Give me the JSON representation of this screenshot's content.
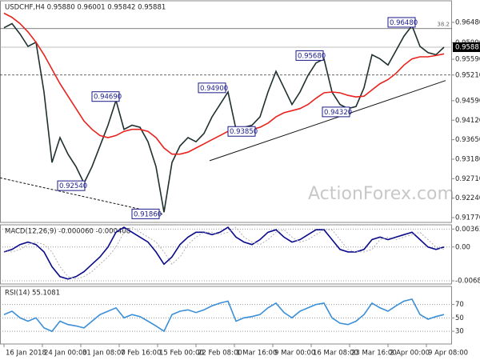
{
  "watermark": "ActionForex.com",
  "chart_data": [
    {
      "type": "line",
      "title": "USDCHF,H4  0.95880 0.96001 0.95842 0.95881",
      "x": [
        0,
        1,
        2,
        3,
        4,
        5,
        6,
        7,
        8,
        9,
        10,
        11,
        12,
        13,
        14,
        15,
        16,
        17,
        18,
        19,
        20,
        21,
        22,
        23,
        24,
        25,
        26,
        27,
        28,
        29,
        30,
        31,
        32,
        33,
        34,
        35,
        36,
        37,
        38,
        39,
        40,
        41,
        42,
        43,
        44,
        45,
        46,
        47,
        48,
        49,
        50,
        51,
        52,
        53,
        54,
        55
      ],
      "xlim": [
        -0.5,
        56
      ],
      "ylim": [
        0.91655,
        0.97
      ],
      "yticks": [
        {
          "value": 0.9648,
          "label": "0.96480"
        },
        {
          "value": 0.9599,
          "label": "0.95990"
        },
        {
          "value": 0.9559,
          "label": "0.95590"
        },
        {
          "value": 0.9521,
          "label": "0.95210"
        },
        {
          "value": 0.9459,
          "label": "0.94590"
        },
        {
          "value": 0.9412,
          "label": "0.94120"
        },
        {
          "value": 0.9365,
          "label": "0.93650"
        },
        {
          "value": 0.9318,
          "label": "0.93180"
        },
        {
          "value": 0.9271,
          "label": "0.92710"
        },
        {
          "value": 0.9224,
          "label": "0.92240"
        },
        {
          "value": 0.9177,
          "label": "0.91770"
        }
      ],
      "current": {
        "value": 0.95881,
        "label": "0.95881"
      },
      "series": [
        {
          "name": "USDCHF",
          "color": "#1f3030",
          "values": [
            0.9635,
            0.9645,
            0.962,
            0.959,
            0.96,
            0.948,
            0.931,
            0.937,
            0.933,
            0.93,
            0.926,
            0.93,
            0.935,
            0.94,
            0.946,
            0.939,
            0.94,
            0.9395,
            0.936,
            0.93,
            0.919,
            0.931,
            0.935,
            0.937,
            0.936,
            0.938,
            0.942,
            0.945,
            0.948,
            0.939,
            0.9395,
            0.94,
            0.942,
            0.948,
            0.953,
            0.949,
            0.945,
            0.948,
            0.952,
            0.955,
            0.956,
            0.948,
            0.945,
            0.944,
            0.9445,
            0.949,
            0.957,
            0.956,
            0.9545,
            0.958,
            0.9615,
            0.964,
            0.959,
            0.9575,
            0.957,
            0.9588
          ]
        },
        {
          "name": "MA",
          "color": "#e8231e",
          "values": [
            0.967,
            0.966,
            0.9645,
            0.9625,
            0.96,
            0.957,
            0.9535,
            0.95,
            0.947,
            0.944,
            0.941,
            0.939,
            0.9375,
            0.937,
            0.9375,
            0.9385,
            0.939,
            0.939,
            0.9385,
            0.937,
            0.9345,
            0.933,
            0.933,
            0.9335,
            0.9345,
            0.9355,
            0.9365,
            0.9375,
            0.9385,
            0.9385,
            0.9385,
            0.939,
            0.9395,
            0.9405,
            0.942,
            0.943,
            0.9435,
            0.944,
            0.945,
            0.9465,
            0.9478,
            0.948,
            0.9478,
            0.9472,
            0.9468,
            0.947,
            0.9485,
            0.95,
            0.951,
            0.9525,
            0.9545,
            0.956,
            0.9565,
            0.9565,
            0.9568,
            0.9572
          ]
        }
      ],
      "annotations": [
        {
          "x": 48,
          "value": 0.9648,
          "label": "0.96480"
        },
        {
          "x": 36.5,
          "value": 0.9568,
          "label": "0.95680"
        },
        {
          "x": 24.3,
          "value": 0.949,
          "label": "0.94900"
        },
        {
          "x": 11,
          "value": 0.9469,
          "label": "0.94690"
        },
        {
          "x": 39.8,
          "value": 0.9432,
          "label": "0.94320"
        },
        {
          "x": 28,
          "value": 0.9385,
          "label": "0.93850"
        },
        {
          "x": 6.7,
          "value": 0.9254,
          "label": "0.92540"
        },
        {
          "x": 16,
          "value": 0.9186,
          "label": "0.91860"
        }
      ],
      "hlines": [
        {
          "value": 0.9633,
          "label": "38.2",
          "style": "solid"
        },
        {
          "value": 0.95881,
          "style": "thin"
        },
        {
          "value": 0.9521,
          "style": "dashed"
        }
      ],
      "trendlines": [
        {
          "x": [
            25.7,
            55.2
          ],
          "y": [
            0.93143,
            0.95076
          ],
          "style": "solid"
        },
        {
          "x": [
            -0.5,
            20
          ],
          "y": [
            0.9273,
            0.91845
          ],
          "style": "dashed"
        }
      ]
    },
    {
      "type": "line",
      "title": "MACD(12,26,9) -0.000060 -0.000408",
      "x": [
        0,
        1,
        2,
        3,
        4,
        5,
        6,
        7,
        8,
        9,
        10,
        11,
        12,
        13,
        14,
        15,
        16,
        17,
        18,
        19,
        20,
        21,
        22,
        23,
        24,
        25,
        26,
        27,
        28,
        29,
        30,
        31,
        32,
        33,
        34,
        35,
        36,
        37,
        38,
        39,
        40,
        41,
        42,
        43,
        44,
        45,
        46,
        47,
        48,
        49,
        50,
        51,
        52,
        53,
        54,
        55
      ],
      "xlim": [
        -0.5,
        56
      ],
      "ylim": [
        -0.0075,
        0.0045
      ],
      "yticks": [
        0.003638,
        {
          "value": 0,
          "label": "0.00"
        },
        -0.006858
      ],
      "grid": true,
      "series": [
        {
          "name": "MACD",
          "color": "#0a0a8c",
          "values": [
            -0.001,
            -0.0005,
            0.0005,
            0.001,
            0.0005,
            -0.001,
            -0.004,
            -0.006,
            -0.0065,
            -0.006,
            -0.005,
            -0.0035,
            -0.002,
            0,
            0.003,
            0.004,
            0.003,
            0.002,
            0.001,
            -0.001,
            -0.0035,
            -0.002,
            0.0005,
            0.002,
            0.003,
            0.003,
            0.0025,
            0.003,
            0.004,
            0.002,
            0.001,
            0.0005,
            0.0015,
            0.003,
            0.0035,
            0.002,
            0.001,
            0.0015,
            0.0025,
            0.0035,
            0.0035,
            0.0015,
            -0.0005,
            -0.001,
            -0.001,
            -0.0005,
            0.0015,
            0.002,
            0.0015,
            0.002,
            0.0025,
            0.003,
            0.0015,
            0,
            -0.0005,
            0
          ]
        },
        {
          "name": "Signal",
          "color": "#b0b0b0",
          "dash": true,
          "values": [
            -0.0008,
            -0.001,
            -0.0005,
            0.0005,
            0.001,
            0.0005,
            -0.001,
            -0.004,
            -0.006,
            -0.0065,
            -0.006,
            -0.005,
            -0.0035,
            -0.002,
            0,
            0.003,
            0.004,
            0.003,
            0.002,
            0.001,
            -0.001,
            -0.0035,
            -0.002,
            0.0005,
            0.002,
            0.003,
            0.003,
            0.0025,
            0.003,
            0.004,
            0.002,
            0.001,
            0.0005,
            0.0015,
            0.003,
            0.0035,
            0.002,
            0.001,
            0.0015,
            0.0025,
            0.0035,
            0.0035,
            0.0015,
            -0.0005,
            -0.001,
            -0.001,
            -0.0005,
            0.0015,
            0.002,
            0.0015,
            0.002,
            0.0025,
            0.003,
            0.0015,
            0,
            -0.0005
          ]
        }
      ]
    },
    {
      "type": "line",
      "title": "RSI(14) 55.1081",
      "x": [
        0,
        1,
        2,
        3,
        4,
        5,
        6,
        7,
        8,
        9,
        10,
        11,
        12,
        13,
        14,
        15,
        16,
        17,
        18,
        19,
        20,
        21,
        22,
        23,
        24,
        25,
        26,
        27,
        28,
        29,
        30,
        31,
        32,
        33,
        34,
        35,
        36,
        37,
        38,
        39,
        40,
        41,
        42,
        43,
        44,
        45,
        46,
        47,
        48,
        49,
        50,
        51,
        52,
        53,
        54,
        55
      ],
      "xlim": [
        -0.5,
        56
      ],
      "ylim": [
        11,
        97
      ],
      "yticks": [
        70,
        50,
        30
      ],
      "grid": true,
      "series": [
        {
          "name": "RSI",
          "color": "#3a8fd8",
          "values": [
            55,
            60,
            50,
            45,
            50,
            35,
            30,
            45,
            40,
            38,
            35,
            45,
            55,
            60,
            65,
            50,
            55,
            52,
            45,
            38,
            30,
            55,
            60,
            62,
            58,
            62,
            68,
            72,
            75,
            45,
            50,
            52,
            55,
            65,
            72,
            58,
            50,
            60,
            65,
            70,
            72,
            50,
            42,
            40,
            45,
            55,
            72,
            65,
            60,
            68,
            75,
            78,
            55,
            48,
            52,
            55
          ]
        }
      ],
      "xticks": [
        {
          "value": 0,
          "label": "16 Jan 2018"
        },
        {
          "value": 4.8,
          "label": "24 Jan 00:00"
        },
        {
          "value": 9.6,
          "label": "31 Jan 08:00"
        },
        {
          "value": 14.4,
          "label": "7 Feb 16:00"
        },
        {
          "value": 19.2,
          "label": "15 Feb 00:00"
        },
        {
          "value": 24,
          "label": "22 Feb 08:00"
        },
        {
          "value": 28.8,
          "label": "1 Mar 16:00"
        },
        {
          "value": 33.6,
          "label": "9 Mar 00:00"
        },
        {
          "value": 38.4,
          "label": "16 Mar 08:00"
        },
        {
          "value": 43.2,
          "label": "23 Mar 16:00"
        },
        {
          "value": 48,
          "label": "2 Apr 00:00"
        },
        {
          "value": 52.8,
          "label": "9 Apr 08:00"
        }
      ]
    }
  ]
}
